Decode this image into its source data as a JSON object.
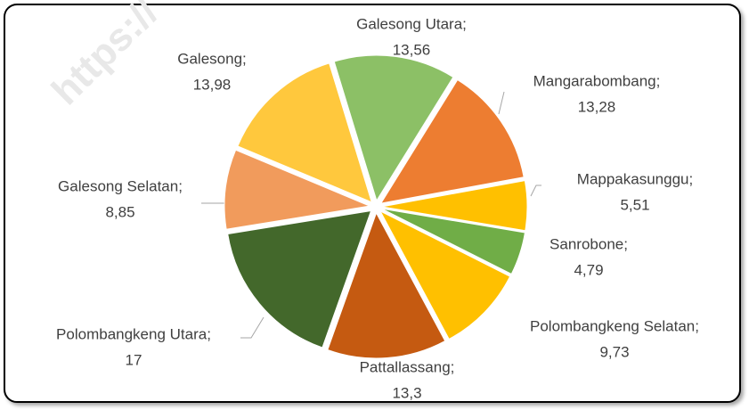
{
  "chart_data": {
    "type": "pie",
    "watermark": "https://",
    "categories": [
      "Galesong Utara;",
      "Mangarabombang;",
      "Mappakasunggu;",
      "Sanrobone;",
      "Polombangkeng Selatan;",
      "Pattallassang;",
      "Polombangkeng Utara;",
      "Galesong Selatan;",
      "Galesong;"
    ],
    "values": [
      13.56,
      13.28,
      5.51,
      4.79,
      9.73,
      13.3,
      17,
      8.85,
      13.98
    ],
    "value_labels": [
      "13,56",
      "13,28",
      "5,51",
      "4,79",
      "9,73",
      "13,3",
      "17",
      "8,85",
      "13,98"
    ],
    "colors": [
      "#8cc066",
      "#ed7d31",
      "#ffc000",
      "#70ad47",
      "#ffc000",
      "#c55a11",
      "#43682b",
      "#f19b5c",
      "#ffc83d"
    ]
  }
}
